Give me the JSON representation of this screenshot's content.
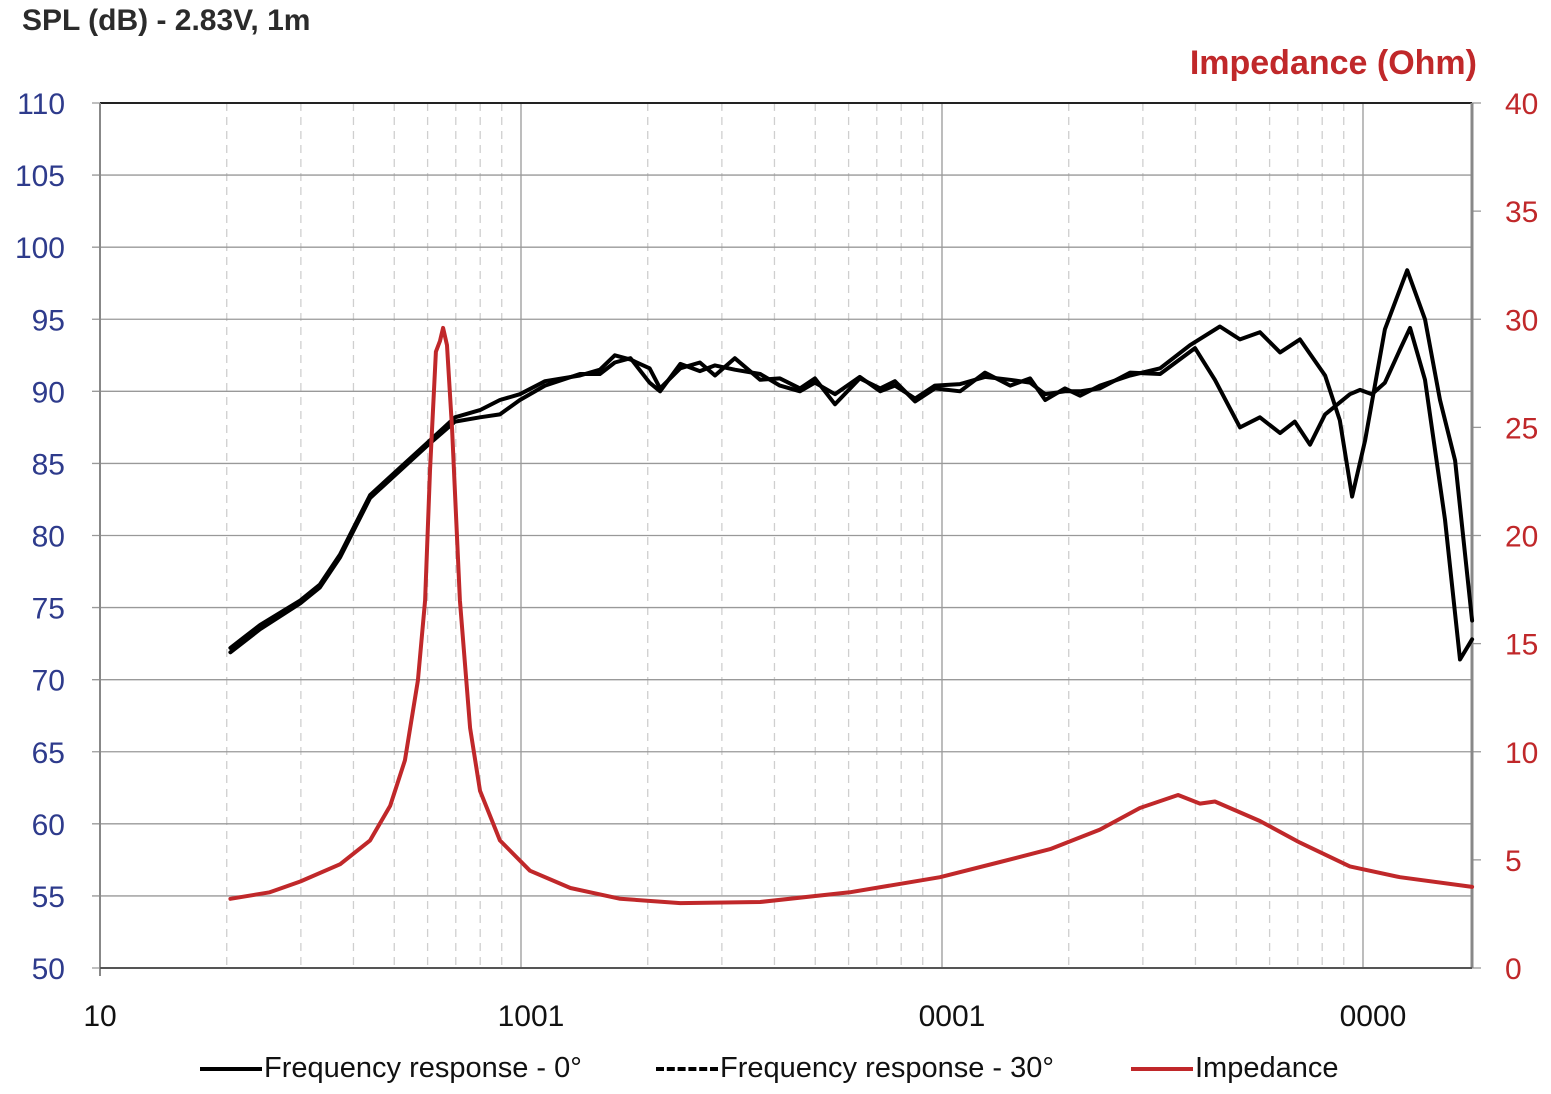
{
  "chart_data": {
    "type": "line",
    "title": "SPL (dB) - 2.83V, 1m",
    "ylabel_right": "Impedance (Ohm)",
    "x_scale": "log",
    "x_tick_labels": [
      "10",
      "1001",
      "0001",
      "0000"
    ],
    "xlim_hz": [
      10,
      18200
    ],
    "ylim": [
      50,
      110
    ],
    "y_ticks": [
      50,
      55,
      60,
      65,
      70,
      75,
      80,
      85,
      90,
      95,
      100,
      105,
      110
    ],
    "ylim_right": [
      0,
      40
    ],
    "y_ticks_right": [
      0,
      5,
      10,
      15,
      20,
      25,
      30,
      35,
      40
    ],
    "grid": true,
    "legend_position": "bottom",
    "colors": {
      "left_axis": "#2e3b8c",
      "right_axis": "#c0282a",
      "spl": "#000000",
      "impedance": "#c0282a"
    },
    "series": [
      {
        "name": "Frequency response - 0°",
        "axis": "left",
        "style": "solid",
        "x": [
          20.4,
          24,
          29.9,
          33.3,
          37.2,
          43.8,
          51.6,
          60.8,
          69.7,
          79.9,
          89.1,
          99.4,
          114,
          138,
          154,
          167,
          182,
          202,
          214,
          239,
          266,
          289,
          322,
          370,
          412,
          460,
          499,
          557,
          638,
          713,
          773,
          863,
          962,
          1104,
          1265,
          1452,
          1619,
          1758,
          1960,
          2128,
          2372,
          2797,
          3297,
          3883,
          4571,
          5102,
          5690,
          6353,
          7080,
          8128,
          8810,
          9419,
          10116,
          11270,
          12735,
          14040,
          15240,
          16550,
          18160
        ],
        "y": [
          72.2,
          73.8,
          75.5,
          76.6,
          78.7,
          82.8,
          84.7,
          86.6,
          88.2,
          88.7,
          89.4,
          89.8,
          90.7,
          91.1,
          91.5,
          92.5,
          92.2,
          91.6,
          90.2,
          91.6,
          92.0,
          91.1,
          92.3,
          90.8,
          90.9,
          90.2,
          90.9,
          89.1,
          90.9,
          90.2,
          90.7,
          89.3,
          90.2,
          90.0,
          91.3,
          90.4,
          90.9,
          89.4,
          90.2,
          89.7,
          90.4,
          91.1,
          91.6,
          93.2,
          94.5,
          93.6,
          94.1,
          92.7,
          93.6,
          91.1,
          88.0,
          82.7,
          86.6,
          94.3,
          98.4,
          95.0,
          89.4,
          85.2,
          74.1
        ]
      },
      {
        "name": "Frequency response - 30°",
        "axis": "left",
        "style": "dashed",
        "x": [
          20.4,
          24,
          29.9,
          33.3,
          37.2,
          43.8,
          51.6,
          60.8,
          69.7,
          79.9,
          89.1,
          99.4,
          114,
          138,
          154,
          167,
          182,
          202,
          214,
          239,
          266,
          289,
          322,
          370,
          412,
          460,
          499,
          557,
          638,
          713,
          773,
          863,
          962,
          1104,
          1265,
          1452,
          1619,
          1758,
          1960,
          2128,
          2372,
          2797,
          3297,
          3990,
          4448,
          5102,
          5690,
          6353,
          6887,
          7482,
          8128,
          9311,
          9840,
          10500,
          11270,
          12246,
          12940,
          14040,
          15660,
          17000,
          18160
        ],
        "y": [
          71.9,
          73.5,
          75.3,
          76.4,
          78.5,
          82.6,
          84.5,
          86.4,
          87.9,
          88.2,
          88.4,
          89.4,
          90.4,
          91.2,
          91.2,
          92.0,
          92.3,
          90.6,
          90.0,
          91.9,
          91.4,
          91.8,
          91.5,
          91.2,
          90.4,
          90.0,
          90.6,
          89.8,
          91.0,
          90.0,
          90.4,
          89.5,
          90.4,
          90.5,
          91.0,
          90.8,
          90.6,
          89.8,
          90.0,
          90.0,
          90.2,
          91.3,
          91.2,
          93.0,
          90.8,
          87.5,
          88.2,
          87.1,
          87.9,
          86.3,
          88.4,
          89.8,
          90.1,
          89.8,
          90.6,
          92.9,
          94.4,
          90.8,
          81.1,
          71.4,
          72.8
        ]
      },
      {
        "name": "Impedance",
        "axis": "right",
        "style": "solid",
        "x": [
          20.4,
          25.3,
          29.9,
          37.2,
          43.8,
          48.9,
          53.0,
          56.9,
          59.2,
          60.8,
          62.8,
          64.2,
          65.3,
          66.7,
          68.6,
          71.6,
          75.7,
          79.9,
          89.1,
          105,
          131,
          172,
          239,
          370,
          604,
          989,
          1374,
          1807,
          2372,
          2952,
          3638,
          4100,
          4448,
          5690,
          7080,
          9311,
          12246,
          18160
        ],
        "y": [
          3.2,
          3.5,
          4.0,
          4.8,
          5.9,
          7.5,
          9.6,
          13.3,
          17.0,
          23.0,
          28.5,
          29.0,
          29.6,
          28.8,
          24.9,
          17.0,
          11.1,
          8.2,
          5.9,
          4.5,
          3.7,
          3.2,
          3.0,
          3.05,
          3.5,
          4.2,
          4.9,
          5.5,
          6.4,
          7.4,
          8.0,
          7.6,
          7.7,
          6.8,
          5.8,
          4.7,
          4.2,
          3.75
        ]
      }
    ]
  }
}
